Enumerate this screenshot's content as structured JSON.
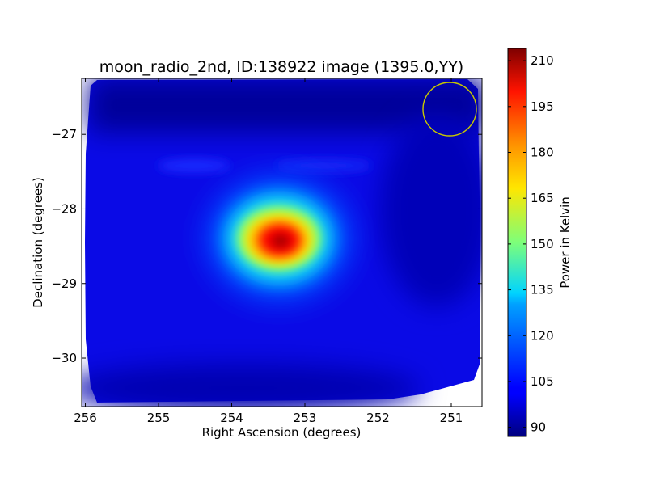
{
  "chart_data": {
    "type": "heatmap",
    "title": "moon_radio_2nd, ID:138922 image (1395.0,YY)",
    "xlabel": "Right Ascension (degrees)",
    "ylabel": "Declination (degrees)",
    "x_axis": {
      "range": [
        256.05,
        250.58
      ],
      "inverted": true,
      "ticks": [
        256,
        255,
        254,
        253,
        252,
        251
      ]
    },
    "y_axis": {
      "range": [
        -30.65,
        -26.25
      ],
      "ticks": [
        -27,
        -28,
        -29,
        -30
      ]
    },
    "grid": false,
    "colormap": "jet",
    "colorbar": {
      "label": "Power in Kelvin",
      "range": [
        87,
        214
      ],
      "ticks": [
        90,
        105,
        120,
        135,
        150,
        165,
        180,
        195,
        210
      ]
    },
    "image": {
      "background_level_K": 100,
      "source": {
        "center_ra": 253.25,
        "center_dec": -28.38,
        "peak_K": 212
      }
    },
    "beam_circle": {
      "center_ra": 251.0,
      "center_dec": -26.6,
      "color": "#c8c800"
    }
  }
}
